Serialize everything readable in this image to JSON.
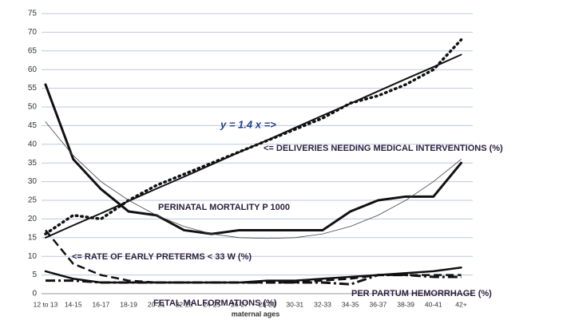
{
  "chart_data": {
    "type": "line",
    "x_label": "maternal ages",
    "categories": [
      "12 to 13",
      "14-15",
      "16-17",
      "18-19",
      "20-21",
      "22-23",
      "24-25",
      "26-27",
      "28-29",
      "30-31",
      "32-33",
      "34-35",
      "36-37",
      "38-39",
      "40-41",
      "42+"
    ],
    "ylim": [
      0,
      75
    ],
    "yticks": [
      0,
      5,
      10,
      15,
      20,
      25,
      30,
      35,
      40,
      45,
      50,
      55,
      60,
      65,
      70,
      75
    ],
    "grid": true,
    "annotations": [
      {
        "text": "y = 1.4 x =>",
        "color": "#1f3e8c"
      }
    ],
    "series": [
      {
        "name": "<= DELIVERIES NEEDING MEDICAL INTERVENTIONS (%)",
        "color": "#111",
        "style": "dotted",
        "width": 3.5,
        "values": [
          16,
          21,
          20,
          25,
          29,
          32,
          35,
          38,
          41,
          44,
          47,
          51,
          53,
          56,
          60,
          68
        ]
      },
      {
        "color": "#111",
        "style": "solid",
        "width": 2,
        "values": [
          15,
          18.3,
          21.5,
          24.8,
          28.1,
          31.3,
          34.6,
          37.9,
          41.1,
          44.4,
          47.7,
          50.9,
          54.2,
          57.5,
          60.7,
          64
        ]
      },
      {
        "name": "PERINATAL MORTALITY P 1000",
        "color": "#111",
        "style": "solid",
        "width": 3,
        "values": [
          56,
          36,
          28,
          22,
          21,
          17,
          16,
          17,
          17,
          17,
          17,
          22,
          25,
          26,
          26,
          35
        ]
      },
      {
        "color": "#444",
        "style": "solid",
        "width": 0.8,
        "values": [
          46,
          37,
          30,
          25,
          21,
          18,
          16,
          15,
          14.8,
          15,
          16,
          18,
          21,
          25,
          30,
          36
        ]
      },
      {
        "name": "<= RATE OF EARLY PRETERMS < 33 W (%)",
        "color": "#111",
        "style": "dashed",
        "width": 2.5,
        "values": [
          17,
          8,
          5,
          3.5,
          3,
          3,
          3,
          3,
          3,
          3,
          3.5,
          4,
          5,
          5,
          5,
          5
        ]
      },
      {
        "name": "FETAL MALFORMATIONS (%)",
        "color": "#111",
        "style": "solid",
        "width": 2.5,
        "values": [
          6,
          4,
          3,
          3,
          3,
          3,
          3,
          3,
          3.5,
          3.5,
          4,
          4.5,
          5,
          5.5,
          6,
          7
        ]
      },
      {
        "name": "PER PARTUM HEMORRHAGE (%)",
        "color": "#111",
        "style": "dashdot",
        "width": 3,
        "values": [
          3.5,
          3.5,
          3,
          3,
          3,
          3,
          3,
          3,
          3,
          3,
          3,
          2.5,
          5,
          5,
          4.5,
          4.5
        ]
      }
    ]
  }
}
